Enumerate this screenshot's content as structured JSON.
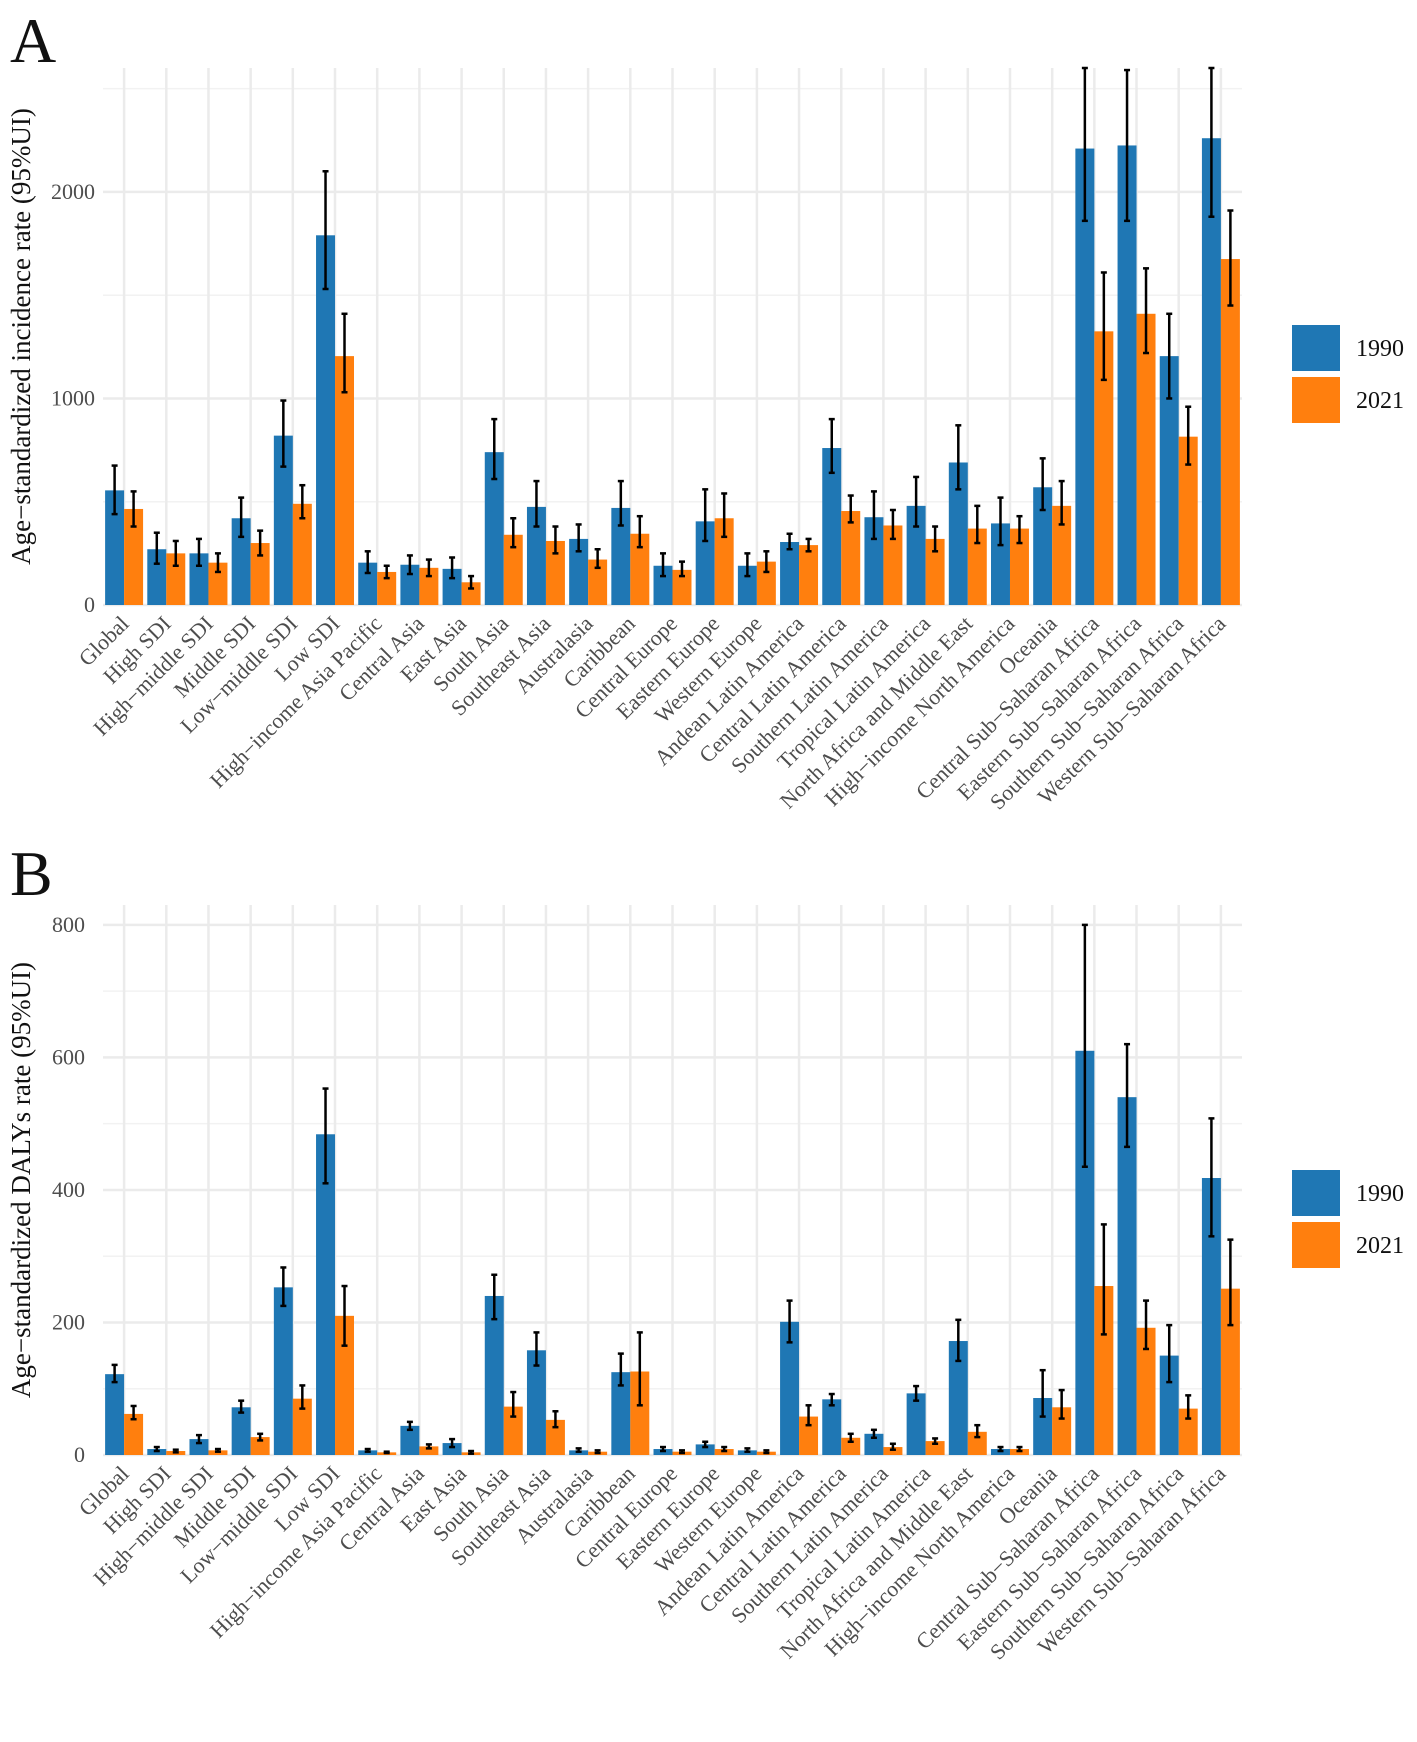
{
  "colors": {
    "series_1990": "#1f77b4",
    "series_2021": "#ff7f0e",
    "grid": "#ebebeb",
    "error_bar": "#000000"
  },
  "chart_data": [
    {
      "panel_label": "A",
      "type": "bar",
      "title": "",
      "xlabel": "",
      "ylabel": "Age−standardized incidence rate (95%UI)",
      "ylim": [
        0,
        2600
      ],
      "yticks": [
        0,
        1000,
        2000
      ],
      "grid": true,
      "legend_position": "right",
      "categories": [
        "Global",
        "High SDI",
        "High−middle SDI",
        "Middle SDI",
        "Low−middle SDI",
        "Low SDI",
        "High−income Asia Pacific",
        "Central Asia",
        "East Asia",
        "South Asia",
        "Southeast Asia",
        "Australasia",
        "Caribbean",
        "Central Europe",
        "Eastern Europe",
        "Western Europe",
        "Andean Latin America",
        "Central Latin America",
        "Southern Latin America",
        "Tropical Latin America",
        "North Africa and Middle East",
        "High−income North America",
        "Oceania",
        "Central Sub−Saharan Africa",
        "Eastern Sub−Saharan Africa",
        "Southern Sub−Saharan Africa",
        "Western Sub−Saharan Africa"
      ],
      "series": [
        {
          "name": "1990",
          "values": [
            555,
            270,
            250,
            420,
            820,
            1790,
            205,
            195,
            175,
            740,
            475,
            320,
            470,
            190,
            405,
            190,
            305,
            760,
            425,
            480,
            690,
            395,
            570,
            2210,
            2225,
            1205,
            2260
          ],
          "lower": [
            440,
            200,
            190,
            330,
            670,
            1530,
            155,
            150,
            130,
            610,
            380,
            260,
            385,
            140,
            310,
            140,
            270,
            640,
            320,
            380,
            560,
            290,
            460,
            1860,
            1860,
            1000,
            1880
          ],
          "upper": [
            675,
            350,
            320,
            520,
            990,
            2100,
            260,
            240,
            230,
            900,
            600,
            390,
            600,
            250,
            560,
            250,
            345,
            900,
            550,
            620,
            870,
            520,
            710,
            2600,
            2590,
            1410,
            2600
          ]
        },
        {
          "name": "2021",
          "values": [
            465,
            250,
            205,
            300,
            490,
            1205,
            160,
            180,
            110,
            340,
            310,
            220,
            345,
            170,
            420,
            210,
            290,
            455,
            385,
            320,
            370,
            370,
            480,
            1325,
            1410,
            815,
            1675
          ],
          "lower": [
            380,
            190,
            160,
            240,
            420,
            1030,
            130,
            140,
            80,
            280,
            250,
            180,
            280,
            140,
            330,
            160,
            260,
            400,
            320,
            260,
            300,
            300,
            390,
            1090,
            1220,
            680,
            1450
          ],
          "upper": [
            550,
            310,
            250,
            360,
            580,
            1410,
            190,
            220,
            140,
            420,
            380,
            270,
            430,
            210,
            540,
            260,
            320,
            530,
            460,
            380,
            480,
            430,
            600,
            1610,
            1630,
            960,
            1910
          ]
        }
      ]
    },
    {
      "panel_label": "B",
      "type": "bar",
      "title": "",
      "xlabel": "",
      "ylabel": "Age−standardized DALYs rate (95%UI)",
      "ylim": [
        0,
        830
      ],
      "yticks": [
        0,
        200,
        400,
        600,
        800
      ],
      "grid": true,
      "legend_position": "right",
      "categories": [
        "Global",
        "High SDI",
        "High−middle SDI",
        "Middle SDI",
        "Low−middle SDI",
        "Low SDI",
        "High−income Asia Pacific",
        "Central Asia",
        "East Asia",
        "South Asia",
        "Southeast Asia",
        "Australasia",
        "Caribbean",
        "Central Europe",
        "Eastern Europe",
        "Western Europe",
        "Andean Latin America",
        "Central Latin America",
        "Southern Latin America",
        "Tropical Latin America",
        "North Africa and Middle East",
        "High−income North America",
        "Oceania",
        "Central Sub−Saharan Africa",
        "Eastern Sub−Saharan Africa",
        "Southern Sub−Saharan Africa",
        "Western Sub−Saharan Africa"
      ],
      "series": [
        {
          "name": "1990",
          "values": [
            122,
            9,
            24,
            72,
            253,
            484,
            7,
            44,
            18,
            240,
            158,
            7,
            125,
            9,
            16,
            7,
            201,
            84,
            32,
            93,
            172,
            9,
            86,
            610,
            540,
            150,
            418
          ],
          "lower": [
            110,
            6,
            18,
            64,
            225,
            410,
            5,
            38,
            12,
            205,
            135,
            5,
            105,
            6,
            12,
            5,
            170,
            75,
            26,
            82,
            142,
            6,
            58,
            435,
            465,
            110,
            330
          ],
          "upper": [
            136,
            12,
            30,
            82,
            283,
            553,
            9,
            50,
            24,
            272,
            185,
            10,
            153,
            12,
            20,
            10,
            233,
            92,
            38,
            104,
            204,
            12,
            128,
            800,
            620,
            196,
            508
          ]
        },
        {
          "name": "2021",
          "values": [
            62,
            6,
            7,
            27,
            85,
            210,
            4,
            13,
            4,
            73,
            53,
            5,
            126,
            5,
            9,
            5,
            58,
            26,
            12,
            21,
            35,
            9,
            72,
            255,
            192,
            70,
            251
          ],
          "lower": [
            54,
            4,
            5,
            22,
            70,
            165,
            3,
            10,
            2,
            58,
            42,
            3,
            75,
            3,
            6,
            3,
            45,
            20,
            8,
            17,
            27,
            6,
            55,
            182,
            160,
            55,
            196
          ],
          "upper": [
            74,
            8,
            9,
            32,
            105,
            255,
            5,
            16,
            6,
            95,
            66,
            7,
            185,
            7,
            12,
            7,
            75,
            32,
            17,
            25,
            45,
            12,
            98,
            348,
            233,
            90,
            325
          ]
        }
      ]
    }
  ]
}
